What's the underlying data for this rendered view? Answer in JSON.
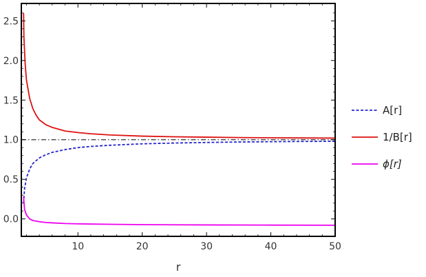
{
  "chart_data": {
    "type": "line",
    "xlabel": "r",
    "ylabel": "",
    "xlim": [
      1.2,
      50
    ],
    "ylim": [
      -0.22,
      2.72
    ],
    "xticks": [
      10,
      20,
      30,
      40,
      50
    ],
    "yticks": [
      0.0,
      0.5,
      1.0,
      1.5,
      2.0,
      2.5
    ],
    "xtick_labels": [
      "10",
      "20",
      "30",
      "40",
      "50"
    ],
    "ytick_labels": [
      "0.0",
      "0.5",
      "1.0",
      "1.5",
      "2.0",
      "2.5"
    ],
    "frame": "box",
    "grid": false,
    "legend_position": "right",
    "reference_line": {
      "y": 1.0,
      "style": "dash-dot",
      "color": "#333333"
    },
    "series": [
      {
        "name": "A[r]",
        "color": "#2323cc",
        "dash": "dashed",
        "x": [
          1.55,
          1.7,
          2,
          2.5,
          3,
          4,
          5,
          6,
          8,
          10,
          12,
          15,
          20,
          25,
          30,
          35,
          40,
          45,
          50
        ],
        "y": [
          0.2,
          0.38,
          0.52,
          0.63,
          0.7,
          0.77,
          0.81,
          0.84,
          0.875,
          0.9,
          0.915,
          0.93,
          0.948,
          0.958,
          0.965,
          0.971,
          0.975,
          0.978,
          0.98
        ]
      },
      {
        "name": "1/B[r]",
        "color": "#dd1010",
        "dash": "solid",
        "x": [
          1.55,
          1.6,
          1.8,
          2,
          2.5,
          3,
          3.5,
          4,
          5,
          6,
          8,
          10,
          12,
          15,
          20,
          25,
          30,
          35,
          40,
          45,
          50
        ],
        "y": [
          2.6,
          2.3,
          1.95,
          1.75,
          1.52,
          1.39,
          1.31,
          1.25,
          1.19,
          1.155,
          1.11,
          1.09,
          1.075,
          1.06,
          1.045,
          1.037,
          1.032,
          1.027,
          1.024,
          1.022,
          1.02
        ]
      },
      {
        "name": "ϕ[r]",
        "color": "#ee00ee",
        "dash": "solid",
        "x": [
          1.55,
          1.7,
          2,
          2.5,
          3,
          4,
          5,
          6,
          8,
          10,
          15,
          20,
          30,
          40,
          50
        ],
        "y": [
          0.28,
          0.12,
          0.05,
          0.0,
          -0.02,
          -0.035,
          -0.045,
          -0.05,
          -0.058,
          -0.062,
          -0.068,
          -0.072,
          -0.076,
          -0.078,
          -0.08
        ]
      }
    ]
  }
}
